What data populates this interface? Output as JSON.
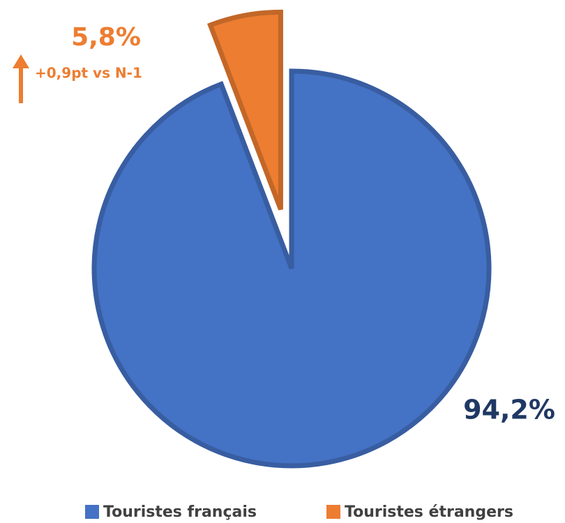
{
  "chart_data": {
    "type": "pie",
    "categories": [
      "Touristes français",
      "Touristes étrangers"
    ],
    "values": [
      94.2,
      5.8
    ],
    "value_labels": [
      "94,2%",
      "5,8%"
    ],
    "colors": [
      "#4472c4",
      "#ed7d31"
    ],
    "label_colors": [
      "#1f3864",
      "#ed7d31"
    ],
    "annotation": "+0,9pt vs N-1"
  }
}
